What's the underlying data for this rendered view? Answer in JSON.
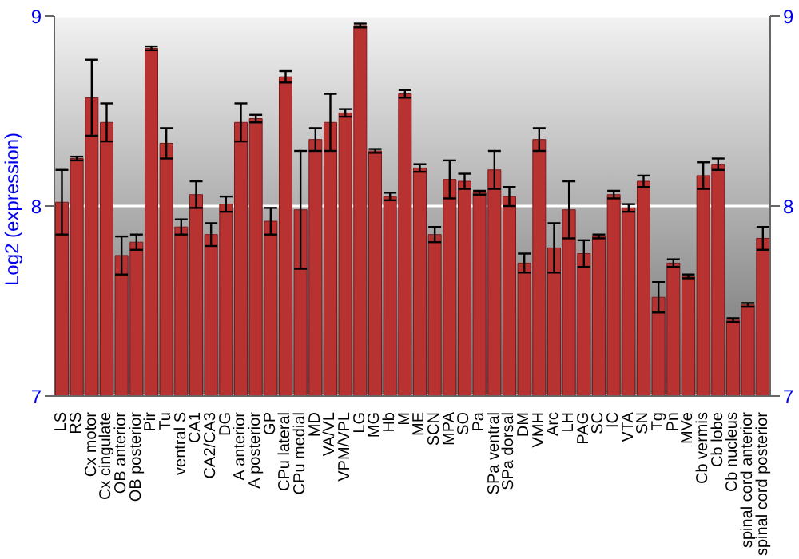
{
  "chart_data": {
    "type": "bar",
    "ylabel": "Log2 (expression)",
    "categories": [
      "LS",
      "RS",
      "Cx motor",
      "Cx cingulate",
      "OB anterior",
      "OB posterior",
      "Pir",
      "Tu",
      "ventral S",
      "CA1",
      "CA2/CA3",
      "DG",
      "A anterior",
      "A posterior",
      "GP",
      "CPu lateral",
      "CPu medial",
      "MD",
      "VA/VL",
      "VPM/VPL",
      "LG",
      "MG",
      "Hb",
      "M",
      "ME",
      "SCN",
      "MPA",
      "SO",
      "Pa",
      "SPa ventral",
      "SPa dorsal",
      "DM",
      "VMH",
      "Arc",
      "LH",
      "PAG",
      "SC",
      "IC",
      "VTA",
      "SN",
      "Tg",
      "Pn",
      "MVe",
      "Cb vermis",
      "Cb lobe",
      "Cb nucleus",
      "spinal cord anterior",
      "spinal cord posterior"
    ],
    "values": [
      8.02,
      8.25,
      8.57,
      8.44,
      7.74,
      7.81,
      8.83,
      8.33,
      7.89,
      8.06,
      7.85,
      8.01,
      8.44,
      8.46,
      7.92,
      8.68,
      7.98,
      8.35,
      8.44,
      8.49,
      8.95,
      8.29,
      8.05,
      8.59,
      8.2,
      7.85,
      8.14,
      8.13,
      8.07,
      8.19,
      8.05,
      7.7,
      8.35,
      7.78,
      7.98,
      7.75,
      7.84,
      8.06,
      7.99,
      8.13,
      7.52,
      7.7,
      7.63,
      8.16,
      8.22,
      7.4,
      7.48,
      7.83
    ],
    "errors": [
      0.17,
      0.01,
      0.2,
      0.1,
      0.1,
      0.04,
      0.01,
      0.08,
      0.04,
      0.07,
      0.06,
      0.04,
      0.1,
      0.02,
      0.07,
      0.03,
      0.31,
      0.06,
      0.15,
      0.02,
      0.01,
      0.01,
      0.02,
      0.02,
      0.02,
      0.04,
      0.1,
      0.04,
      0.01,
      0.1,
      0.05,
      0.05,
      0.06,
      0.13,
      0.15,
      0.07,
      0.01,
      0.02,
      0.02,
      0.03,
      0.08,
      0.02,
      0.01,
      0.07,
      0.03,
      0.01,
      0.01,
      0.06
    ],
    "color": "#b83232",
    "ylim": [
      7,
      9
    ],
    "yticks": [
      7,
      8,
      9
    ],
    "y2lim": [
      7,
      9
    ],
    "y2ticks": [
      7,
      8,
      9
    ],
    "grid": "y"
  }
}
